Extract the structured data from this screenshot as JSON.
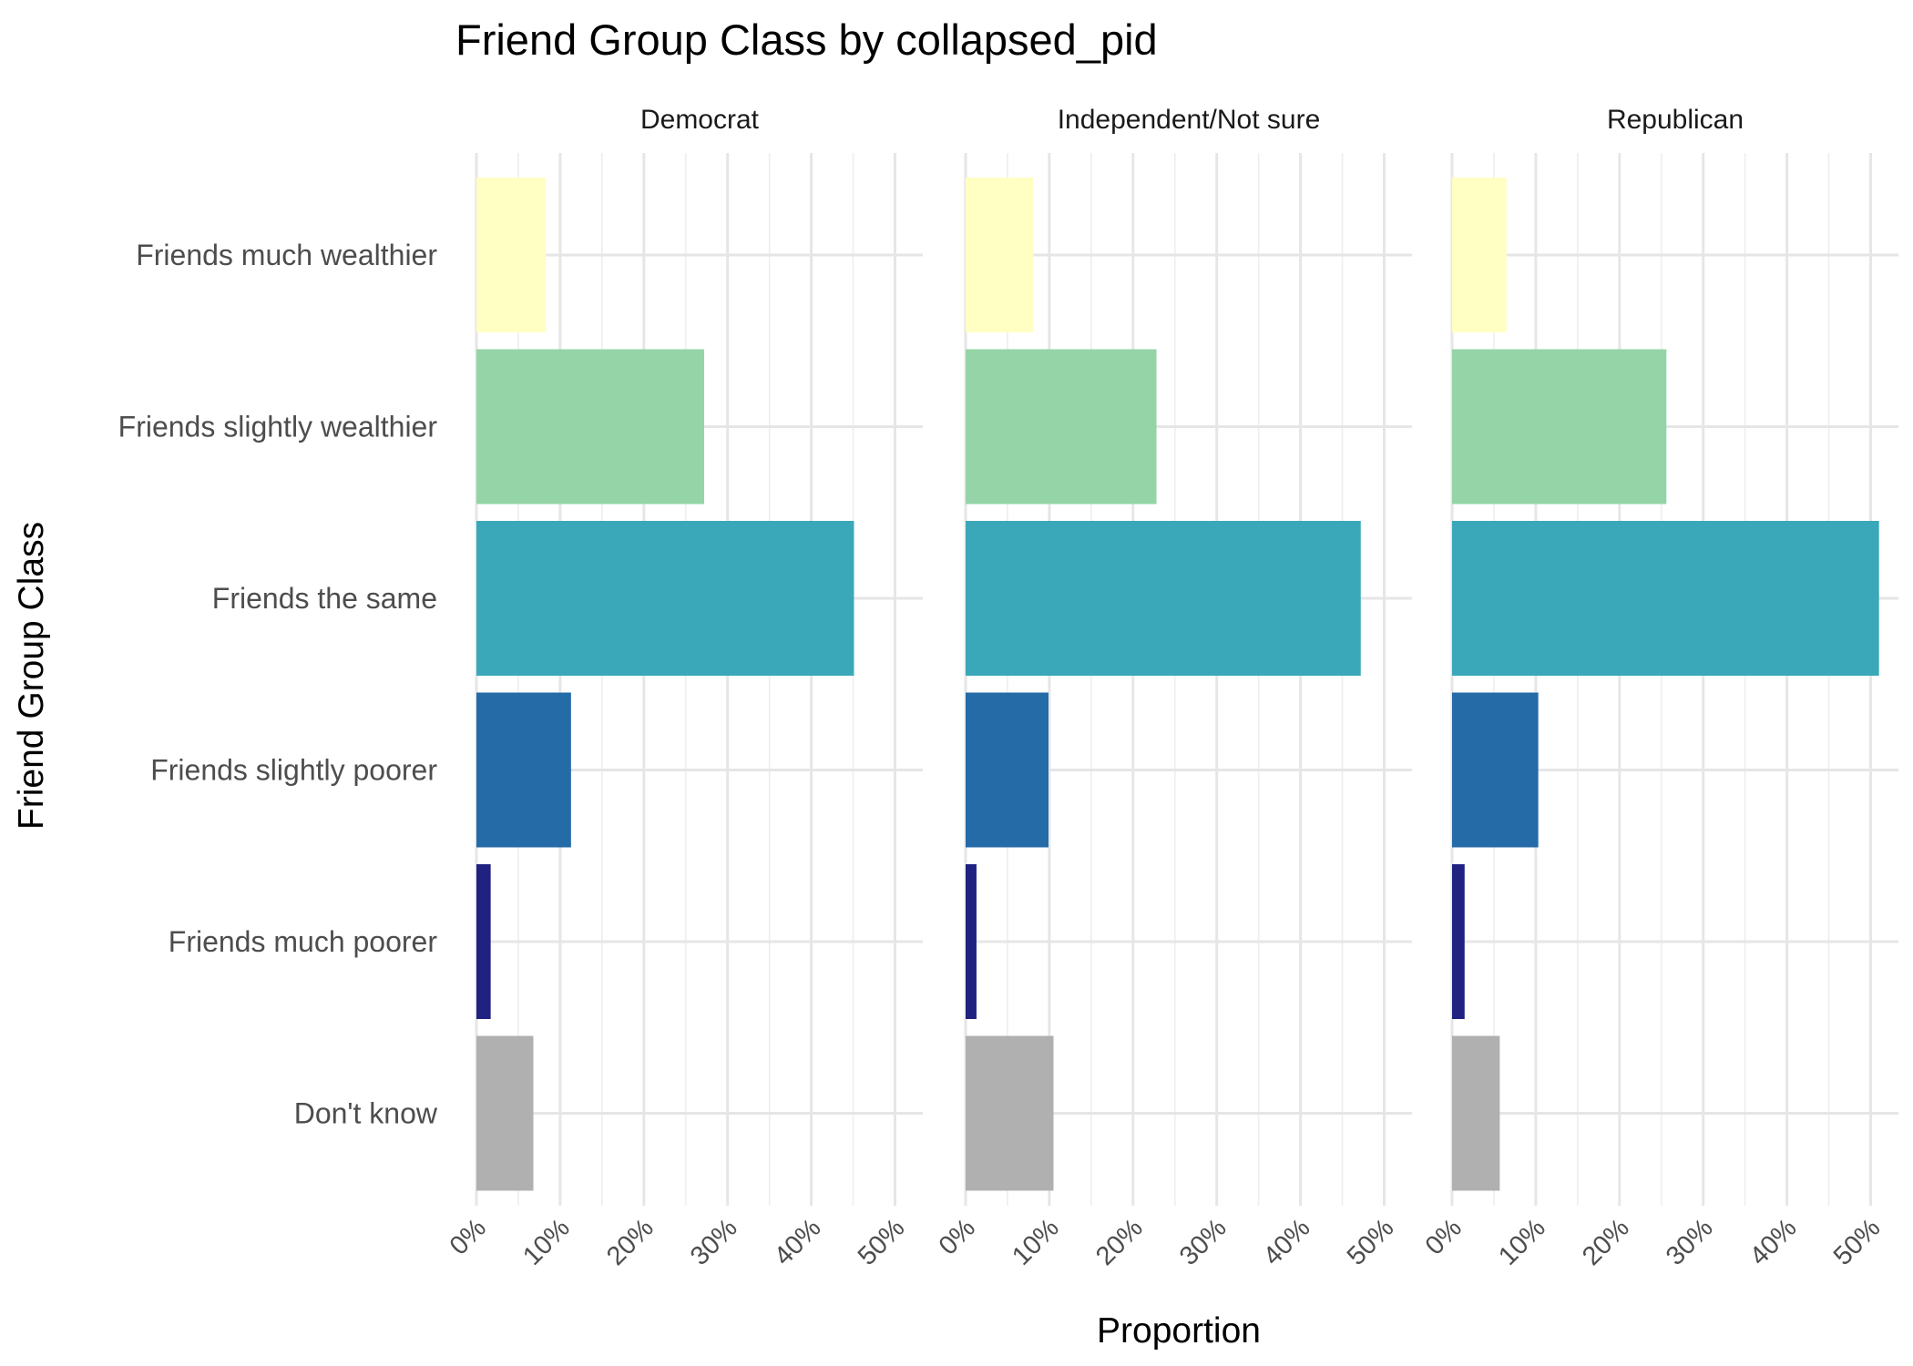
{
  "chart_data": {
    "type": "bar",
    "orientation": "horizontal",
    "title": "Friend Group Class by collapsed_pid",
    "xlabel": "Proportion",
    "ylabel": "Friend Group Class",
    "xlim": [
      0,
      0.5
    ],
    "x_ticks": [
      0,
      0.1,
      0.2,
      0.3,
      0.4,
      0.5
    ],
    "x_tick_labels": [
      "0%",
      "10%",
      "20%",
      "30%",
      "40%",
      "50%"
    ],
    "grid": true,
    "legend": "none",
    "categories": [
      "Friends much wealthier",
      "Friends slightly wealthier",
      "Friends the same",
      "Friends slightly poorer",
      "Friends much poorer",
      "Don't know"
    ],
    "category_colors": [
      "#FFFFC4",
      "#94D4A6",
      "#3AA8B8",
      "#246BA8",
      "#1F2280",
      "#B0B0B0"
    ],
    "facets": [
      {
        "name": "Democrat",
        "values": [
          0.083,
          0.272,
          0.451,
          0.113,
          0.017,
          0.068
        ]
      },
      {
        "name": "Independent/Not sure",
        "values": [
          0.081,
          0.228,
          0.472,
          0.099,
          0.013,
          0.105
        ]
      },
      {
        "name": "Republican",
        "values": [
          0.065,
          0.256,
          0.51,
          0.103,
          0.015,
          0.057
        ]
      }
    ]
  }
}
